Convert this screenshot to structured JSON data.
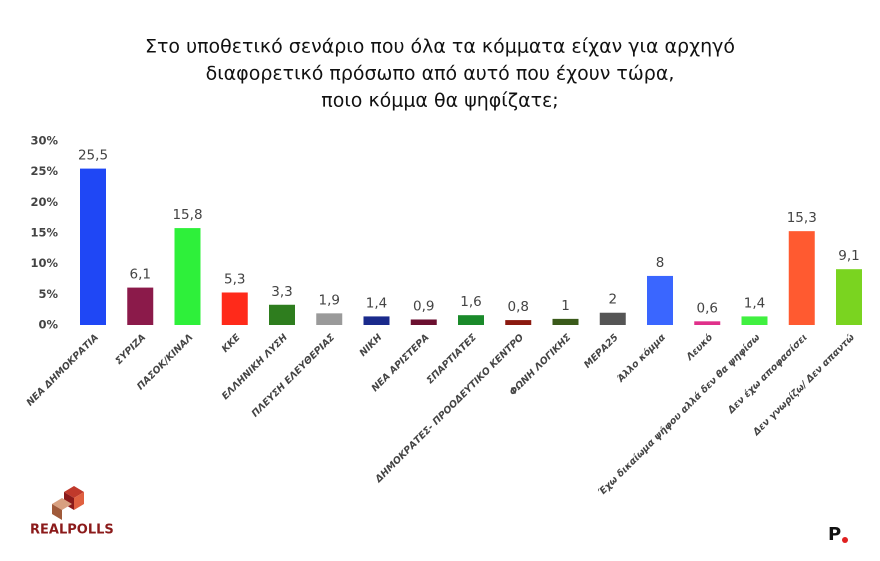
{
  "chart_data": {
    "type": "bar",
    "title": [
      "Στο υποθετικό σενάριο που όλα τα κόμματα είχαν για αρχηγό",
      "διαφορετικό πρόσωπο από αυτό που έχουν τώρα,",
      "ποιο κόμμα θα ψηφίζατε;"
    ],
    "categories": [
      "ΝΕΑ ΔΗΜΟΚΡΑΤΙΑ",
      "ΣΥΡΙΖΑ",
      "ΠΑΣΟΚ/ΚΙΝΑΛ",
      "ΚΚΕ",
      "ΕΛΛΗΝΙΚΗ ΛΥΣΗ",
      "ΠΛΕΥΣΗ ΕΛΕΥΘΕΡΙΑΣ",
      "ΝΙΚΗ",
      "ΝΕΑ ΑΡΙΣΤΕΡΑ",
      "ΣΠΑΡΤΙΑΤΕΣ",
      "ΔΗΜΟΚΡΑΤΕΣ- ΠΡΟΟΔΕΥΤΙΚΟ ΚΕΝΤΡΟ",
      "ΦΩΝΗ ΛΟΓΙΚΗΣ",
      "ΜΕΡΑ25",
      "Άλλο κόμμα",
      "Λευκό",
      "Έχω δικαίωμα ψήφου αλλά δεν θα ψηφίσω",
      "Δεν έχω αποφασίσει",
      "Δεν γνωρίζω/ Δεν απαντώ"
    ],
    "values": [
      25.5,
      6.1,
      15.8,
      5.3,
      3.3,
      1.9,
      1.4,
      0.9,
      1.6,
      0.8,
      1,
      2,
      8,
      0.6,
      1.4,
      15.3,
      9.1
    ],
    "value_labels": [
      "25,5",
      "6,1",
      "15,8",
      "5,3",
      "3,3",
      "1,9",
      "1,4",
      "0,9",
      "1,6",
      "0,8",
      "1",
      "2",
      "8",
      "0,6",
      "1,4",
      "15,3",
      "9,1"
    ],
    "colors": [
      "#1f47f5",
      "#8b1a4a",
      "#2ef03a",
      "#ff2a1a",
      "#2e7d1e",
      "#9a9a9a",
      "#1a2a8c",
      "#6b1030",
      "#1a8a2a",
      "#8b1a10",
      "#3a5a1a",
      "#555555",
      "#3a66ff",
      "#e0308a",
      "#40f040",
      "#ff5a30",
      "#7ad420"
    ],
    "ylim": [
      0,
      30
    ],
    "yticks": [
      {
        "value": 0,
        "label": "0%"
      },
      {
        "value": 5,
        "label": "5%"
      },
      {
        "value": 10,
        "label": "10%"
      },
      {
        "value": 15,
        "label": "15%"
      },
      {
        "value": 20,
        "label": "20%"
      },
      {
        "value": 25,
        "label": "25%"
      },
      {
        "value": 30,
        "label": "30%"
      }
    ],
    "grid": false
  },
  "logo": "REALPOLLS",
  "brand": "P"
}
